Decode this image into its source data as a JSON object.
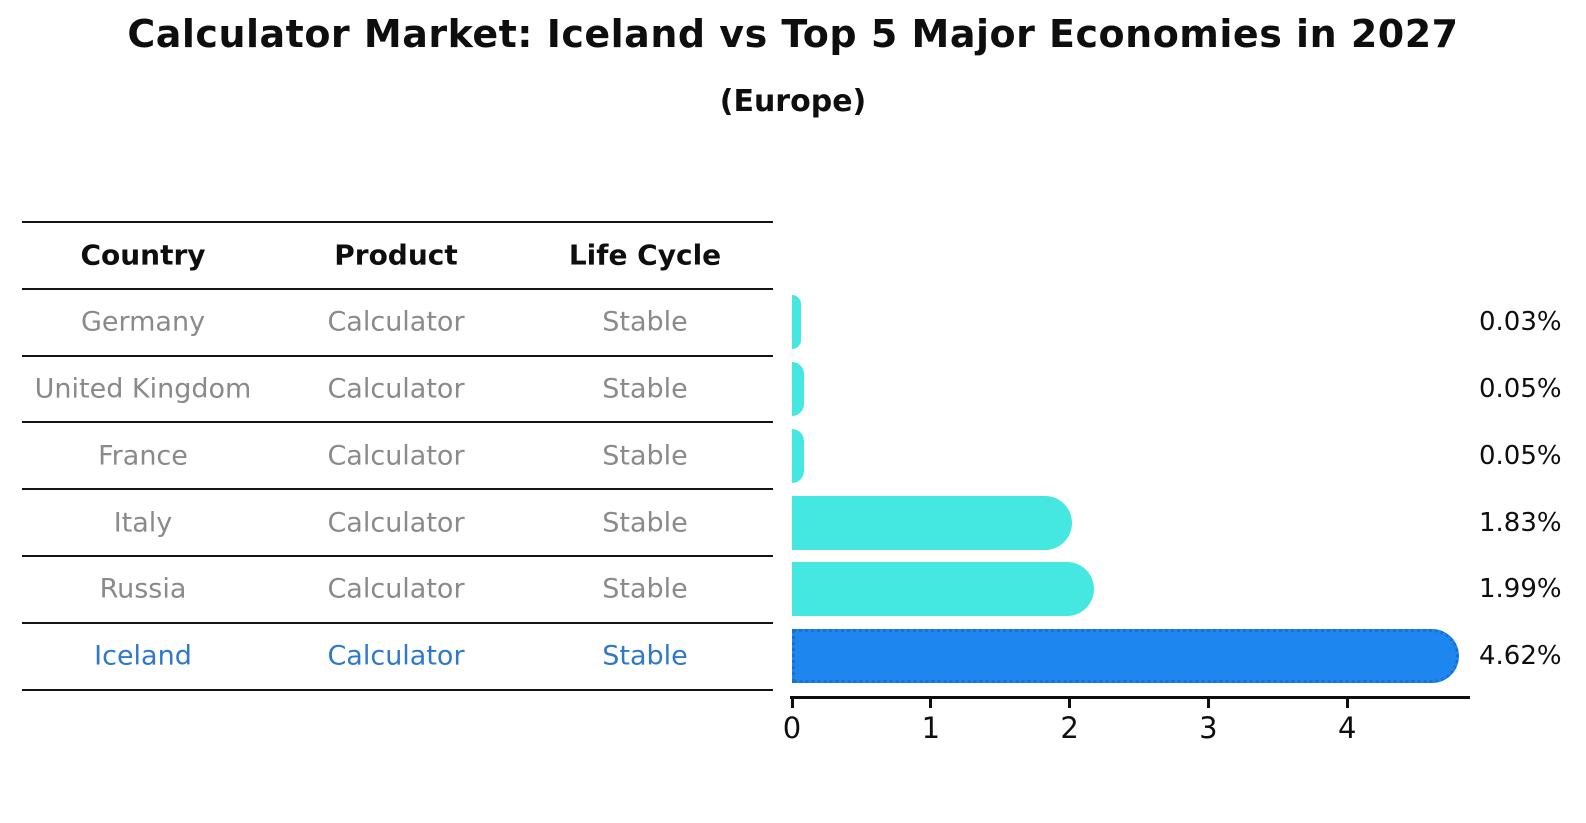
{
  "title": "Calculator Market: Iceland vs Top 5 Major Economies in 2027",
  "subtitle": "(Europe)",
  "table": {
    "headers": [
      "Country",
      "Product",
      "Life Cycle"
    ],
    "rows": [
      {
        "country": "Germany",
        "product": "Calculator",
        "life_cycle": "Stable"
      },
      {
        "country": "United Kingdom",
        "product": "Calculator",
        "life_cycle": "Stable"
      },
      {
        "country": "France",
        "product": "Calculator",
        "life_cycle": "Stable"
      },
      {
        "country": "Italy",
        "product": "Calculator",
        "life_cycle": "Stable"
      },
      {
        "country": "Russia",
        "product": "Calculator",
        "life_cycle": "Stable"
      },
      {
        "country": "Iceland",
        "product": "Calculator",
        "life_cycle": "Stable"
      }
    ],
    "highlight_row": "Iceland"
  },
  "chart_data": {
    "type": "bar",
    "orientation": "horizontal",
    "title": "Calculator Market: Iceland vs Top 5 Major Economies in 2027",
    "subtitle": "(Europe)",
    "categories": [
      "Germany",
      "United Kingdom",
      "France",
      "Italy",
      "Russia",
      "Iceland"
    ],
    "values": [
      0.03,
      0.05,
      0.05,
      1.83,
      1.99,
      4.62
    ],
    "value_labels": [
      "0.03%",
      "0.05%",
      "0.05%",
      "1.83%",
      "1.99%",
      "4.62%"
    ],
    "highlight_index": 5,
    "x_ticks": [
      "0",
      "1",
      "2",
      "3",
      "4"
    ],
    "xlim": [
      0,
      4.88
    ],
    "grid": false,
    "legend": false,
    "unit": "%"
  },
  "colors": {
    "bar": "#45e8e0",
    "highlight_bar": "#1e87ef",
    "highlight_bar_border": "#1b6ed2",
    "row_text": "#8a8a8a",
    "highlight_text": "#2e79cf",
    "header_text": "#0e0e0e",
    "axis": "#0e0e0e",
    "background": "#ffffff"
  }
}
